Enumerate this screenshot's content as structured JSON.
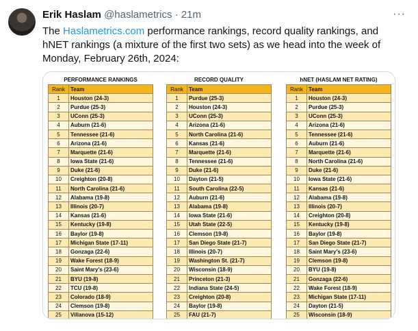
{
  "tweet": {
    "author_name": "Erik Haslam",
    "handle": "@haslametrics",
    "dot": "·",
    "time": "21m",
    "more": "···",
    "text_link": "Haslametrics.com",
    "text_before": "The ",
    "text_after": " performance rankings, record quality rankings, and hNET rankings (a mixture of the first two sets) as we head into the week of Monday, February 26th, 2024:"
  },
  "tables": [
    {
      "title": "PERFORMANCE RANKINGS",
      "rank_header": "Rank",
      "team_header": "Team",
      "rows": [
        {
          "rank": "1",
          "team": "Houston (24-3)"
        },
        {
          "rank": "2",
          "team": "Purdue (25-3)"
        },
        {
          "rank": "3",
          "team": "UConn (25-3)"
        },
        {
          "rank": "4",
          "team": "Auburn (21-6)"
        },
        {
          "rank": "5",
          "team": "Tennessee (21-6)"
        },
        {
          "rank": "6",
          "team": "Arizona (21-6)"
        },
        {
          "rank": "7",
          "team": "Marquette (21-6)"
        },
        {
          "rank": "8",
          "team": "Iowa State (21-6)"
        },
        {
          "rank": "9",
          "team": "Duke (21-6)"
        },
        {
          "rank": "10",
          "team": "Creighton (20-8)"
        },
        {
          "rank": "11",
          "team": "North Carolina (21-6)"
        },
        {
          "rank": "12",
          "team": "Alabama (19-8)"
        },
        {
          "rank": "13",
          "team": "Illinois (20-7)"
        },
        {
          "rank": "14",
          "team": "Kansas (21-6)"
        },
        {
          "rank": "15",
          "team": "Kentucky (19-8)"
        },
        {
          "rank": "16",
          "team": "Baylor (19-8)"
        },
        {
          "rank": "17",
          "team": "Michigan State (17-11)"
        },
        {
          "rank": "18",
          "team": "Gonzaga (22-6)"
        },
        {
          "rank": "19",
          "team": "Wake Forest (18-9)"
        },
        {
          "rank": "20",
          "team": "Saint Mary's (23-6)"
        },
        {
          "rank": "21",
          "team": "BYU (19-8)"
        },
        {
          "rank": "22",
          "team": "TCU (19-8)"
        },
        {
          "rank": "23",
          "team": "Colorado (18-9)"
        },
        {
          "rank": "24",
          "team": "Clemson (19-8)"
        },
        {
          "rank": "25",
          "team": "Villanova (15-12)"
        }
      ]
    },
    {
      "title": "RECORD QUALITY",
      "rank_header": "Rank",
      "team_header": "Team",
      "rows": [
        {
          "rank": "1",
          "team": "Purdue (25-3)"
        },
        {
          "rank": "2",
          "team": "Houston (24-3)"
        },
        {
          "rank": "3",
          "team": "UConn (25-3)"
        },
        {
          "rank": "4",
          "team": "Arizona (21-6)"
        },
        {
          "rank": "5",
          "team": "North Carolina (21-6)"
        },
        {
          "rank": "6",
          "team": "Kansas (21-6)"
        },
        {
          "rank": "7",
          "team": "Marquette (21-6)"
        },
        {
          "rank": "8",
          "team": "Tennessee (21-6)"
        },
        {
          "rank": "9",
          "team": "Duke (21-6)"
        },
        {
          "rank": "10",
          "team": "Dayton (21-5)"
        },
        {
          "rank": "11",
          "team": "South Carolina (22-5)"
        },
        {
          "rank": "12",
          "team": "Auburn (21-6)"
        },
        {
          "rank": "13",
          "team": "Alabama (19-8)"
        },
        {
          "rank": "14",
          "team": "Iowa State (21-6)"
        },
        {
          "rank": "15",
          "team": "Utah State (22-5)"
        },
        {
          "rank": "16",
          "team": "Clemson (19-8)"
        },
        {
          "rank": "17",
          "team": "San Diego State (21-7)"
        },
        {
          "rank": "18",
          "team": "Illinois (20-7)"
        },
        {
          "rank": "19",
          "team": "Washington St. (21-7)"
        },
        {
          "rank": "20",
          "team": "Wisconsin (18-9)"
        },
        {
          "rank": "21",
          "team": "Princeton (21-3)"
        },
        {
          "rank": "22",
          "team": "Indiana State (24-5)"
        },
        {
          "rank": "23",
          "team": "Creighton (20-8)"
        },
        {
          "rank": "24",
          "team": "Baylor (19-8)"
        },
        {
          "rank": "25",
          "team": "FAU (21-7)"
        }
      ]
    },
    {
      "title": "hNET (HASLAM NET RATING)",
      "rank_header": "Rank",
      "team_header": "Team",
      "rows": [
        {
          "rank": "1",
          "team": "Houston (24-3)"
        },
        {
          "rank": "2",
          "team": "Purdue (25-3)"
        },
        {
          "rank": "3",
          "team": "UConn (25-3)"
        },
        {
          "rank": "4",
          "team": "Arizona (21-6)"
        },
        {
          "rank": "5",
          "team": "Tennessee (21-6)"
        },
        {
          "rank": "6",
          "team": "Auburn (21-6)"
        },
        {
          "rank": "7",
          "team": "Marquette (21-6)"
        },
        {
          "rank": "8",
          "team": "North Carolina (21-6)"
        },
        {
          "rank": "9",
          "team": "Duke (21-6)"
        },
        {
          "rank": "10",
          "team": "Iowa State (21-6)"
        },
        {
          "rank": "11",
          "team": "Kansas (21-6)"
        },
        {
          "rank": "12",
          "team": "Alabama (19-8)"
        },
        {
          "rank": "13",
          "team": "Illinois (20-7)"
        },
        {
          "rank": "14",
          "team": "Creighton (20-8)"
        },
        {
          "rank": "15",
          "team": "Kentucky (19-8)"
        },
        {
          "rank": "16",
          "team": "Baylor (19-8)"
        },
        {
          "rank": "17",
          "team": "San Diego State (21-7)"
        },
        {
          "rank": "18",
          "team": "Saint Mary's (23-6)"
        },
        {
          "rank": "19",
          "team": "Clemson (19-8)"
        },
        {
          "rank": "20",
          "team": "BYU (19-8)"
        },
        {
          "rank": "21",
          "team": "Gonzaga (22-6)"
        },
        {
          "rank": "22",
          "team": "Wake Forest (18-9)"
        },
        {
          "rank": "23",
          "team": "Michigan State (17-11)"
        },
        {
          "rank": "24",
          "team": "Dayton (21-5)"
        },
        {
          "rank": "25",
          "team": "Wisconsin (18-9)"
        }
      ]
    }
  ],
  "colors": {
    "header_gold": "#f2b51d",
    "row_odd": "#fde9b2",
    "row_even": "#fff7dc",
    "link_blue": "#1d9bf0",
    "muted": "#536471"
  }
}
